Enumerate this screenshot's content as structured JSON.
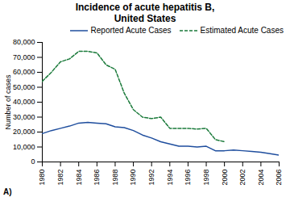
{
  "chart_data": {
    "type": "line",
    "title": "Incidence of acute hepatitis B,\nUnited States",
    "ylabel": "Number of cases",
    "annotations": [
      "A)"
    ],
    "x": [
      1980,
      1981,
      1982,
      1983,
      1984,
      1985,
      1986,
      1987,
      1988,
      1989,
      1990,
      1991,
      1992,
      1993,
      1994,
      1995,
      1996,
      1997,
      1998,
      1999,
      2000,
      2001,
      2002,
      2003,
      2004,
      2005,
      2006
    ],
    "series": [
      {
        "name": "Reported Acute Cases",
        "color": "#1f4e9e",
        "line_style": "solid",
        "values": [
          19000,
          21000,
          22500,
          24000,
          26000,
          26500,
          26000,
          25500,
          23500,
          23000,
          21000,
          18000,
          16000,
          13500,
          12000,
          10500,
          10500,
          10000,
          10500,
          7500,
          7500,
          8000,
          7500,
          7000,
          6500,
          5500,
          4500
        ]
      },
      {
        "name": "Estimated Acute Cases",
        "color": "#1a7a3a",
        "line_style": "dashed",
        "values": [
          54000,
          60000,
          67000,
          69000,
          74000,
          74000,
          73000,
          65000,
          62000,
          46000,
          35000,
          30000,
          29000,
          30000,
          22500,
          22500,
          22500,
          22000,
          22500,
          15000,
          13500,
          null,
          null,
          null,
          null,
          null,
          null
        ]
      }
    ],
    "xlim": [
      1980,
      2006
    ],
    "xticks": [
      1980,
      1982,
      1984,
      1986,
      1988,
      1990,
      1992,
      1994,
      1996,
      1998,
      2000,
      2002,
      2004,
      2006
    ],
    "ylim": [
      0,
      80000
    ],
    "yticks": [
      0,
      {
        "value": 10000,
        "label": "10,000"
      },
      {
        "value": 20000,
        "label": "20,000"
      },
      {
        "value": 30000,
        "label": "30,000"
      },
      {
        "value": 40000,
        "label": "40,000"
      },
      {
        "value": 50000,
        "label": "50,000"
      },
      {
        "value": 60000,
        "label": "60,000"
      },
      {
        "value": 70000,
        "label": "70,000"
      },
      {
        "value": 80000,
        "label": "80,000"
      }
    ],
    "grid": false,
    "legend": "upper right"
  }
}
